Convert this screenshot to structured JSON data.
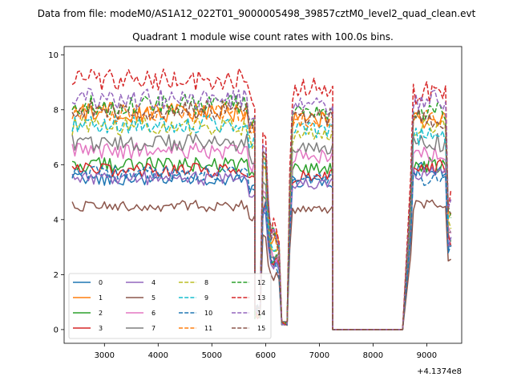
{
  "chart_data": {
    "type": "line",
    "suptitle": "Data from file: modeM0/AS1A12_022T01_9000005498_39857cztM0_level2_quad_clean.evt",
    "title": "Quadrant 1 module wise count rates with 100.0s bins.",
    "xlabel": "",
    "ylabel": "",
    "offset_text": "+4.1374e8",
    "xlim": [
      2250,
      9650
    ],
    "ylim": [
      -0.5,
      10.3
    ],
    "xticks": [
      3000,
      4000,
      5000,
      6000,
      7000,
      8000,
      9000
    ],
    "yticks": [
      0,
      2,
      4,
      6,
      8,
      10
    ],
    "grid": false,
    "legend": {
      "position": "lower-left",
      "ncol": 4
    },
    "segments": [
      [
        2400,
        5800
      ],
      [
        5900,
        7250
      ],
      [
        8700,
        9450
      ]
    ],
    "gaps": [
      {
        "x": [
          5800,
          5850,
          5900
        ],
        "rate": 0.65
      },
      {
        "x": [
          6300,
          6350,
          6400
        ],
        "rate": 0.15
      },
      {
        "x": [
          7250,
          7300,
          7350,
          8450,
          8500,
          8550
        ],
        "rate": 0.0
      }
    ],
    "series": [
      {
        "name": "0",
        "color": "#1f77b4",
        "dash": "solid",
        "level": 5.5,
        "seg3": 5.8
      },
      {
        "name": "1",
        "color": "#ff7f0e",
        "dash": "solid",
        "level": 7.9,
        "seg3": 7.6
      },
      {
        "name": "2",
        "color": "#2ca02c",
        "dash": "solid",
        "level": 6.0,
        "seg3": 6.0
      },
      {
        "name": "3",
        "color": "#d62728",
        "dash": "solid",
        "level": 5.8,
        "seg3": 5.9
      },
      {
        "name": "4",
        "color": "#9467bd",
        "dash": "solid",
        "level": 5.5,
        "seg3": 5.7
      },
      {
        "name": "5",
        "color": "#8c564b",
        "dash": "solid",
        "level": 4.5,
        "seg3": 4.5
      },
      {
        "name": "6",
        "color": "#e377c2",
        "dash": "solid",
        "level": 6.5,
        "seg3": 6.4
      },
      {
        "name": "7",
        "color": "#7f7f7f",
        "dash": "solid",
        "level": 6.8,
        "seg3": 6.8
      },
      {
        "name": "8",
        "color": "#bcbd22",
        "dash": "dashed",
        "level": 7.4,
        "seg3": 7.3
      },
      {
        "name": "9",
        "color": "#17becf",
        "dash": "dashed",
        "level": 7.5,
        "seg3": 7.0
      },
      {
        "name": "10",
        "color": "#1f77b4",
        "dash": "dashed",
        "level": 5.7,
        "seg3": 5.5
      },
      {
        "name": "11",
        "color": "#ff7f0e",
        "dash": "dashed",
        "level": 7.9,
        "seg3": 7.8
      },
      {
        "name": "12",
        "color": "#2ca02c",
        "dash": "dashed",
        "level": 8.2,
        "seg3": 7.9
      },
      {
        "name": "13",
        "color": "#d62728",
        "dash": "dashed",
        "level": 9.1,
        "seg3": 8.6
      },
      {
        "name": "14",
        "color": "#9467bd",
        "dash": "dashed",
        "level": 8.4,
        "seg3": 8.3
      },
      {
        "name": "15",
        "color": "#8c564b",
        "dash": "dashed",
        "level": 8.0,
        "seg3": 7.7
      }
    ]
  }
}
